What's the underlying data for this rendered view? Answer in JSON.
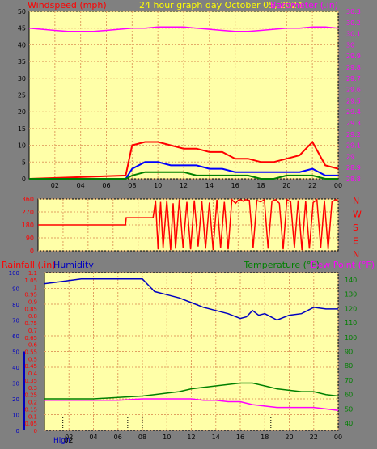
{
  "colors": {
    "background": "#808080",
    "plot_bg": "#FFFFA8",
    "grid": "#E0A060",
    "title": "#FFFF00",
    "windspeed": "#FF0000",
    "wind_avg": "#0000FF",
    "wind_low": "#008000",
    "barometer": "#FF00FF",
    "direction": "#FF0000",
    "rainfall": "#FF0000",
    "humidity": "#0000C0",
    "temperature": "#008000",
    "dewpoint": "#FF00FF"
  },
  "chart_data": [
    {
      "type": "line",
      "title": "24 hour graph day    October 05, 2024",
      "left_label": "Windspeed (mph)",
      "right_label": "Barometer (.in)",
      "x_ticks": [
        "02",
        "04",
        "06",
        "08",
        "10",
        "12",
        "14",
        "16",
        "18",
        "20",
        "22",
        "00"
      ],
      "ylim_left": [
        0,
        50
      ],
      "y_ticks_left": [
        "0",
        "5",
        "10",
        "15",
        "20",
        "25",
        "30",
        "35",
        "40",
        "45",
        "50"
      ],
      "ylim_right": [
        28.8,
        30.3
      ],
      "y_ticks_right": [
        "28.8",
        "28.9",
        "29",
        "29.1",
        "29.2",
        "29.3",
        "29.4",
        "29.5",
        "29.6",
        "29.7",
        "29.8",
        "29.9",
        "30",
        "30.1",
        "30.2",
        "30.3"
      ],
      "series": [
        {
          "key": "barometer",
          "axis": "right",
          "x": [
            0,
            1,
            2,
            3,
            4,
            5,
            6,
            7,
            8,
            9,
            10,
            11,
            12,
            13,
            14,
            15,
            16,
            17,
            18,
            19,
            20,
            21,
            22,
            23,
            24
          ],
          "values": [
            30.15,
            30.14,
            30.13,
            30.12,
            30.12,
            30.12,
            30.13,
            30.14,
            30.15,
            30.15,
            30.16,
            30.16,
            30.16,
            30.15,
            30.14,
            30.13,
            30.12,
            30.12,
            30.13,
            30.14,
            30.15,
            30.15,
            30.16,
            30.16,
            30.15
          ]
        },
        {
          "key": "wind_gust",
          "axis": "left",
          "x": [
            0,
            7.5,
            8,
            9,
            10,
            11,
            12,
            13,
            14,
            15,
            16,
            17,
            18,
            19,
            20,
            21,
            22,
            23,
            24
          ],
          "values": [
            0,
            1,
            10,
            11,
            11,
            10,
            9,
            9,
            8,
            8,
            6,
            6,
            5,
            5,
            6,
            7,
            11,
            4,
            3
          ]
        },
        {
          "key": "wind_avg",
          "axis": "left",
          "x": [
            0,
            7.5,
            8,
            9,
            10,
            11,
            12,
            13,
            14,
            15,
            16,
            17,
            18,
            19,
            20,
            21,
            22,
            23,
            24
          ],
          "values": [
            0,
            0,
            3,
            5,
            5,
            4,
            4,
            4,
            3,
            3,
            2,
            2,
            2,
            2,
            2,
            2,
            3,
            1,
            1
          ]
        },
        {
          "key": "wind_low",
          "axis": "left",
          "x": [
            0,
            7.5,
            8,
            9,
            10,
            11,
            12,
            13,
            14,
            15,
            16,
            17,
            18,
            19,
            20,
            21,
            22,
            23,
            24
          ],
          "values": [
            0,
            0,
            1,
            2,
            2,
            2,
            2,
            1,
            1,
            1,
            1,
            1,
            0,
            0,
            1,
            1,
            1,
            0,
            0
          ]
        }
      ]
    },
    {
      "type": "line",
      "ylim": [
        0,
        360
      ],
      "y_ticks": [
        "0",
        "90",
        "180",
        "270",
        "360"
      ],
      "right_labels": [
        "N",
        "W",
        "S",
        "E",
        "N"
      ],
      "series": [
        {
          "key": "direction",
          "x": [
            0,
            7.0,
            7.05,
            9.2,
            9.4,
            9.6,
            9.8,
            10.0,
            10.3,
            10.6,
            10.8,
            11.0,
            11.3,
            11.6,
            11.9,
            12.2,
            12.5,
            12.8,
            13.1,
            13.4,
            13.7,
            14.0,
            14.3,
            14.6,
            14.9,
            15.2,
            15.5,
            15.8,
            16.0,
            16.2,
            16.4,
            16.6,
            16.9,
            17.2,
            17.5,
            17.8,
            18.1,
            18.4,
            18.7,
            19.0,
            19.3,
            19.6,
            19.9,
            20.2,
            20.5,
            20.8,
            21.1,
            21.4,
            21.7,
            22.0,
            22.3,
            22.6,
            22.9,
            23.2,
            23.5,
            23.8,
            24
          ],
          "values": [
            180,
            180,
            230,
            230,
            350,
            10,
            340,
            20,
            350,
            5,
            330,
            15,
            355,
            20,
            340,
            10,
            350,
            30,
            345,
            15,
            335,
            5,
            355,
            20,
            340,
            10,
            355,
            330,
            350,
            355,
            345,
            355,
            350,
            20,
            350,
            340,
            355,
            15,
            345,
            355,
            330,
            10,
            355,
            340,
            20,
            350,
            5,
            345,
            15,
            335,
            355,
            20,
            350,
            10,
            340,
            355,
            345
          ]
        }
      ]
    },
    {
      "type": "line",
      "left_label": "Rainfall (.in)",
      "left_label_2": "Humidity",
      "right_label": "Temperature (°F)",
      "right_label_2": "Dew Point (°F)",
      "ylim_humidity": [
        0,
        100
      ],
      "y_ticks_humidity": [
        "0",
        "10",
        "20",
        "30",
        "40",
        "50",
        "60",
        "70",
        "80",
        "90",
        "100"
      ],
      "ylim_rain": [
        0,
        1.1
      ],
      "y_ticks_rain": [
        "0",
        "0.05",
        "0.1",
        "0.15",
        "0.2",
        "0.25",
        "0.3",
        "0.35",
        "0.4",
        "0.45",
        "0.5",
        "0.55",
        "0.6",
        "0.65",
        "0.7",
        "0.75",
        "0.8",
        "0.85",
        "0.9",
        "0.95",
        "1",
        "1.05",
        "1.1"
      ],
      "ylim_temp": [
        35,
        145
      ],
      "y_ticks_temp": [
        "40",
        "50",
        "60",
        "70",
        "80",
        "90",
        "100",
        "110",
        "120",
        "130",
        "140"
      ],
      "x_ticks": [
        "02",
        "04",
        "06",
        "08",
        "10",
        "12",
        "14",
        "16",
        "18",
        "20",
        "22",
        "00"
      ],
      "hi_lo_label": "High",
      "x_extra_label": "02",
      "dotted_markers_x": [
        1.5,
        6.8,
        8.0,
        18.5
      ],
      "series": [
        {
          "key": "humidity",
          "x": [
            0,
            1,
            2,
            3,
            4,
            5,
            6,
            7,
            8,
            8.5,
            9,
            10,
            11,
            12,
            13,
            14,
            15,
            16,
            16.5,
            17,
            17.5,
            18,
            19,
            20,
            21,
            22,
            23,
            24
          ],
          "values": [
            93,
            94,
            95,
            96,
            96,
            96,
            96,
            96,
            96,
            92,
            88,
            86,
            84,
            81,
            78,
            76,
            74,
            71,
            72,
            76,
            73,
            74,
            70,
            73,
            74,
            78,
            77,
            77
          ]
        },
        {
          "key": "temperature",
          "x": [
            0,
            2,
            4,
            6,
            8,
            9,
            10,
            11,
            12,
            13,
            14,
            15,
            16,
            17,
            18,
            19,
            20,
            21,
            22,
            23,
            24
          ],
          "values": [
            57,
            57,
            57,
            58,
            59,
            60,
            61,
            62,
            64,
            65,
            66,
            67,
            68,
            68,
            66,
            64,
            63,
            62,
            62,
            60,
            59
          ]
        },
        {
          "key": "dewpoint",
          "x": [
            0,
            2,
            4,
            6,
            8,
            9,
            10,
            11,
            12,
            13,
            14,
            15,
            16,
            17,
            18,
            19,
            20,
            21,
            22,
            23,
            24
          ],
          "values": [
            56,
            56,
            56,
            56,
            57,
            57,
            57,
            57,
            57,
            56,
            56,
            55,
            55,
            53,
            52,
            51,
            51,
            51,
            51,
            50,
            49
          ]
        }
      ]
    }
  ]
}
